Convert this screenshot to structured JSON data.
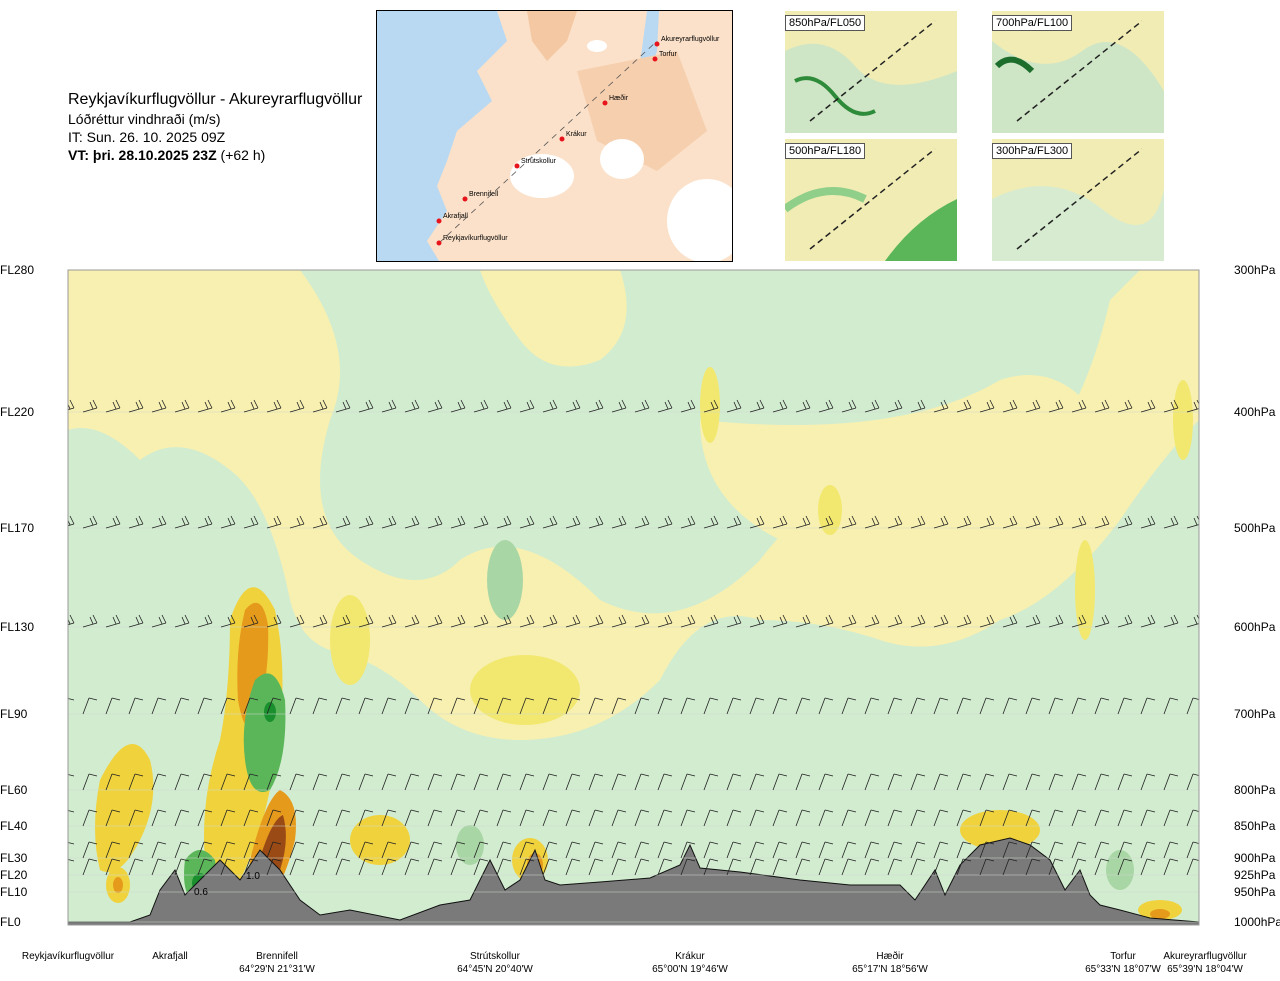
{
  "header": {
    "title": "Reykjavíkurflugvöllur - Akureyrarflugvöllur",
    "subtitle": "Lóðréttur vindhraði (m/s)",
    "issue_time": "IT: Sun. 26. 10. 2025 09Z",
    "valid_time": "VT: þri. 28.10.2025 23Z",
    "valid_offset": "(+62 h)"
  },
  "map": {
    "labels": [
      "Akureyrarflugvöllur",
      "Torfur",
      "Hæðir",
      "Krákur",
      "Strútskollur",
      "Brennifell",
      "Akrafjall",
      "Reykjavíkurflugvöllur"
    ],
    "colors": {
      "sea": "#b9d9f2",
      "land": "#f8d4b4",
      "glacier": "#ffffff",
      "route": "#555555",
      "point": "#e8141c"
    }
  },
  "mini_maps": [
    {
      "label": "850hPa/FL050"
    },
    {
      "label": "700hPa/FL100"
    },
    {
      "label": "500hPa/FL180"
    },
    {
      "label": "300hPa/FL300"
    }
  ],
  "chart_data": {
    "type": "heatmap",
    "title": "Lóðréttur vindhraði (m/s)",
    "y_left_ticks": [
      "FL280",
      "FL220",
      "FL170",
      "FL130",
      "FL90",
      "FL60",
      "FL40",
      "FL30",
      "FL20",
      "FL10",
      "FL0"
    ],
    "y_right_ticks": [
      "300hPa",
      "400hPa",
      "500hPa",
      "600hPa",
      "700hPa",
      "800hPa",
      "850hPa",
      "900hPa",
      "925hPa",
      "950hPa",
      "1000hPa"
    ],
    "levels_hpa": [
      300,
      400,
      500,
      600,
      700,
      800,
      850,
      900,
      925,
      950,
      1000
    ],
    "x_locations": [
      {
        "name": "Reykjavíkurflugvöllur",
        "coord": ""
      },
      {
        "name": "Akrafjall",
        "coord": ""
      },
      {
        "name": "Brennifell",
        "coord": "64°29'N 21°31'W"
      },
      {
        "name": "Strútskollur",
        "coord": "64°45'N 20°40'W"
      },
      {
        "name": "Krákur",
        "coord": "65°00'N 19°46'W"
      },
      {
        "name": "Hæðir",
        "coord": "65°17'N 18°56'W"
      },
      {
        "name": "Torfur",
        "coord": "65°33'N 18°07'W"
      },
      {
        "name": "Akureyrarflugvöllur",
        "coord": "65°39'N 18°04'W"
      }
    ],
    "annotations": [
      "0.6",
      "1.0"
    ],
    "colors": {
      "strong_down": "#1a8f2e",
      "mod_down": "#5bb65a",
      "weak_down": "#a9d6a5",
      "faint_down": "#d2ecd0",
      "neutral": "#fdfbe6",
      "faint_up": "#f7f0b0",
      "weak_up": "#f2e870",
      "mod_up": "#f0d23c",
      "strong_up": "#e59a1c",
      "very_strong_up": "#9a4a14",
      "terrain": "#7a7a7a"
    }
  }
}
